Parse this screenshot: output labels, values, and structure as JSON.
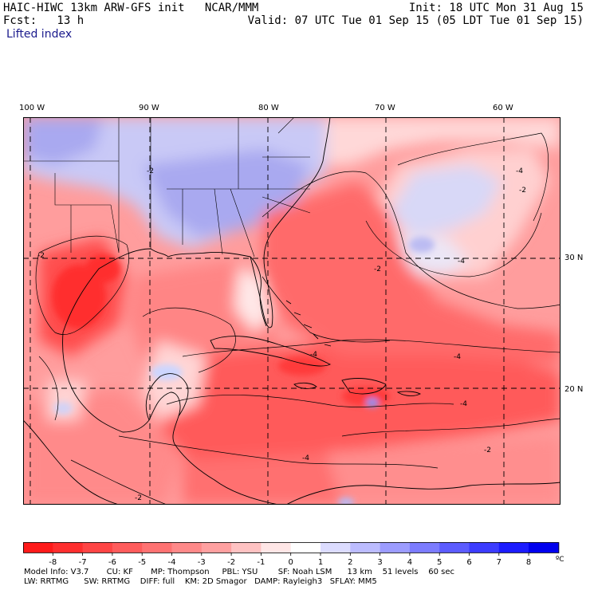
{
  "header": {
    "model_name": "HAIC-HIWC 13km ARW-GFS init",
    "org": "NCAR/MMM",
    "fcst_line": "Fcst:   13 h",
    "field": "Lifted index",
    "init_line": "Init: 18 UTC Mon 31 Aug 15",
    "valid_line": "Valid: 07 UTC Tue 01 Sep 15 (05 LDT Tue 01 Sep 15)"
  },
  "axes": {
    "lon_labels": [
      "100 W",
      "90 W",
      "80 W",
      "70 W",
      "60 W"
    ],
    "lat_labels": [
      "30 N",
      "20 N"
    ]
  },
  "contour_labels": [
    "-2",
    "-2",
    "-4",
    "-2",
    "-4",
    "-4",
    "-2",
    "-4",
    "-2",
    "-4",
    "-4",
    "-2"
  ],
  "colorbar": {
    "ticks": [
      "-8",
      "-7",
      "-6",
      "-5",
      "-4",
      "-3",
      "-2",
      "-1",
      "0",
      "1",
      "2",
      "3",
      "4",
      "5",
      "6",
      "7",
      "8"
    ],
    "unit": "ºC",
    "colors": [
      "#ff1a1a",
      "#ff2e2e",
      "#ff4545",
      "#ff5c5c",
      "#ff7272",
      "#ff8989",
      "#ffa0a0",
      "#ffc2c2",
      "#ffe6e6",
      "#ffffff",
      "#dcdcff",
      "#bcbcff",
      "#9c9cff",
      "#7c7cff",
      "#5c5cff",
      "#3c3cff",
      "#1c1cff",
      "#0000ee"
    ]
  },
  "footer": {
    "line1": "Model Info: V3.7       CU: KF       MP: Thompson     PBL: YSU        SF: Noah LSM      13 km    51 levels    60 sec",
    "line2": "LW: RRTMG      SW: RRTMG    DIFF: full    KM: 2D Smagor   DAMP: Rayleigh3   SFLAY: MM5"
  }
}
